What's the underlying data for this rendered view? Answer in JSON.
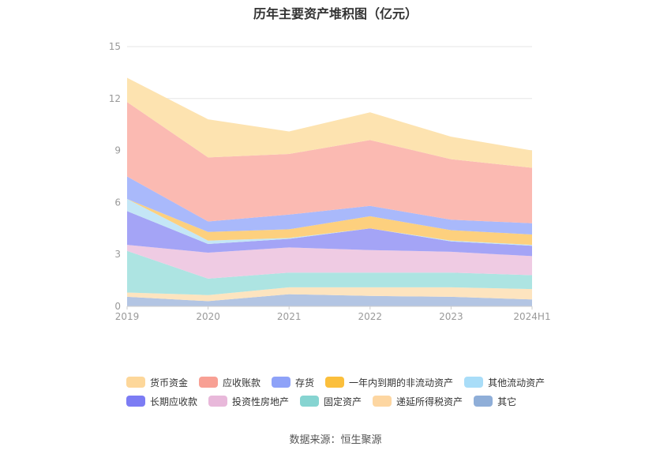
{
  "title": "历年主要资产堆积图（亿元）",
  "source": "数据来源：恒生聚源",
  "colors": {
    "货币资金": "#fde3b0",
    "应收账款": "#fbbab2",
    "存货": "#a9b9fb",
    "一年内到期的非流动资产": "#fdd07e",
    "其他流动资产": "#c4e6f6",
    "长期应收款": "#a4a4f6",
    "投资性房地产": "#efcbe3",
    "固定资产": "#ade4e2",
    "递延所得税资产": "#fde4bf",
    "其它": "#b3c5e3",
    "legend_货币资金": "#fdd79a",
    "legend_应收账款": "#f8a094",
    "legend_存货": "#8ea2f8",
    "legend_一年内到期的非流动资产": "#fbbf3c",
    "legend_其他流动资产": "#a9ddf8",
    "legend_长期应收款": "#7c7cf4",
    "legend_投资性房地产": "#e8b8da",
    "legend_固定资产": "#86d4d1",
    "legend_递延所得税资产": "#fdd6a1",
    "legend_其它": "#8faed8"
  },
  "chart_data": {
    "type": "area",
    "stacked": true,
    "categories": [
      "2019",
      "2020",
      "2021",
      "2022",
      "2023",
      "2024H1"
    ],
    "ylim": [
      0,
      15
    ],
    "yticks": [
      0,
      3,
      6,
      9,
      12,
      15
    ],
    "grid": true,
    "legend_position": "bottom",
    "series": [
      {
        "name": "其它",
        "values": [
          0.55,
          0.3,
          0.7,
          0.6,
          0.55,
          0.4
        ]
      },
      {
        "name": "递延所得税资产",
        "values": [
          0.25,
          0.35,
          0.4,
          0.5,
          0.55,
          0.6
        ]
      },
      {
        "name": "固定资产",
        "values": [
          2.4,
          0.95,
          0.85,
          0.85,
          0.85,
          0.8
        ]
      },
      {
        "name": "投资性房地产",
        "values": [
          0.35,
          1.5,
          1.45,
          1.3,
          1.2,
          1.1
        ]
      },
      {
        "name": "长期应收款",
        "values": [
          1.95,
          0.5,
          0.5,
          1.25,
          0.6,
          0.6
        ]
      },
      {
        "name": "其他流动资产",
        "values": [
          0.7,
          0.2,
          0.05,
          0.0,
          0.05,
          0.05
        ]
      },
      {
        "name": "一年内到期的非流动资产",
        "values": [
          0.0,
          0.5,
          0.5,
          0.7,
          0.6,
          0.6
        ]
      },
      {
        "name": "存货",
        "values": [
          1.3,
          0.6,
          0.85,
          0.6,
          0.6,
          0.65
        ]
      },
      {
        "name": "应收账款",
        "values": [
          4.3,
          3.7,
          3.5,
          3.8,
          3.5,
          3.2
        ]
      },
      {
        "name": "货币资金",
        "values": [
          1.4,
          2.2,
          1.3,
          1.6,
          1.3,
          1.0
        ]
      }
    ],
    "legend": [
      [
        "货币资金",
        "应收账款",
        "存货",
        "一年内到期的非流动资产",
        "其他流动资产"
      ],
      [
        "长期应收款",
        "投资性房地产",
        "固定资产",
        "递延所得税资产",
        "其它"
      ]
    ]
  }
}
